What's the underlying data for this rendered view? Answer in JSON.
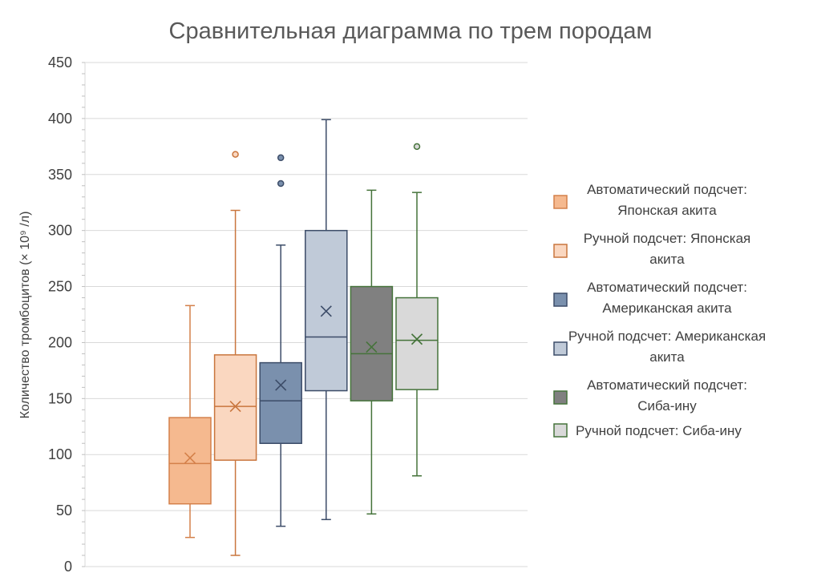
{
  "chart_data": {
    "type": "box",
    "title": "Сравнительная диаграмма по трем породам",
    "ylabel": "Количество тромбоцитов (× 10⁹ /л)",
    "ylim": [
      0,
      450
    ],
    "yticks": [
      0,
      50,
      100,
      150,
      200,
      250,
      300,
      350,
      400,
      450
    ],
    "grid": true,
    "legend_position": "right",
    "series": [
      {
        "name": "Автоматический подсчет: Японская акита",
        "legend_lines": [
          "Автоматический подсчет:",
          "Японская акита"
        ],
        "fill": "#f5b98f",
        "stroke": "#d4804a",
        "markerFill": "#f5b98f",
        "min": 26,
        "q1": 56,
        "median": 92,
        "q3": 133,
        "max": 233,
        "mean": 97,
        "outliers": []
      },
      {
        "name": "Ручной подсчет: Японская акита",
        "legend_lines": [
          "Ручной подсчет: Японская",
          "акита"
        ],
        "fill": "#fad7c0",
        "stroke": "#c9763e",
        "markerFill": "#fad7c0",
        "min": 10,
        "q1": 95,
        "median": 143,
        "q3": 189,
        "max": 318,
        "mean": 143,
        "outliers": [
          368
        ]
      },
      {
        "name": "Автоматический подсчет: Американская акита",
        "legend_lines": [
          "Автоматический подсчет:",
          "Американская акита"
        ],
        "fill": "#7a90ad",
        "stroke": "#3c4c68",
        "markerFill": "#7a90ad",
        "min": 36,
        "q1": 110,
        "median": 148,
        "q3": 182,
        "max": 287,
        "mean": 162,
        "outliers": [
          342,
          365
        ]
      },
      {
        "name": "Ручной подсчет: Американская акита",
        "legend_lines": [
          "Ручной подсчет: Американская",
          "акита"
        ],
        "fill": "#c0cad8",
        "stroke": "#3c4c68",
        "markerFill": "#c0cad8",
        "min": 42,
        "q1": 157,
        "median": 205,
        "q3": 300,
        "max": 399,
        "mean": 228,
        "outliers": []
      },
      {
        "name": "Автоматический подсчет: Сиба-ину",
        "legend_lines": [
          "Автоматический подсчет:",
          "Сиба-ину"
        ],
        "fill": "#808080",
        "stroke": "#45733a",
        "markerFill": "#808080",
        "min": 47,
        "q1": 148,
        "median": 190,
        "q3": 250,
        "max": 336,
        "mean": 196,
        "outliers": []
      },
      {
        "name": "Ручной подсчет: Сиба-ину",
        "legend_lines": [
          "Ручной подсчет: Сиба-ину"
        ],
        "fill": "#d9d9d9",
        "stroke": "#45733a",
        "markerFill": "#d9d9d9",
        "min": 81,
        "q1": 158,
        "median": 202,
        "q3": 240,
        "max": 334,
        "mean": 203,
        "outliers": [
          375
        ]
      }
    ]
  }
}
